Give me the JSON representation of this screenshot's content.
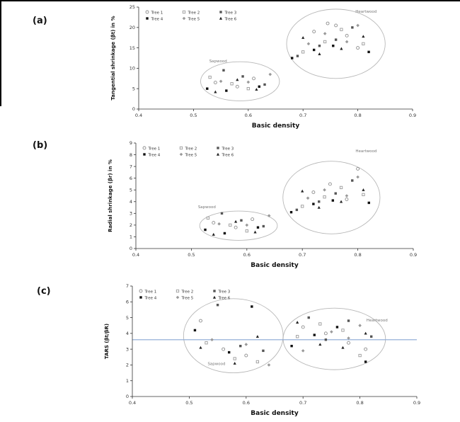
{
  "page": {
    "panels": [
      {
        "label": "(a)"
      },
      {
        "label": "(b)"
      },
      {
        "label": "(c)"
      }
    ]
  },
  "chart_data": [
    {
      "panel": "a",
      "type": "scatter",
      "xlabel": "Basic density",
      "ylabel": "Tangential shrinkage (βt) in %",
      "xlim": [
        0.4,
        0.9
      ],
      "ylim": [
        0,
        25
      ],
      "xticks": [
        0.4,
        0.5,
        0.6,
        0.7,
        0.8,
        0.9
      ],
      "xtick_labels": [
        "0.4",
        "0.5",
        "0.6",
        "0.7",
        "0.8",
        "0.9"
      ],
      "yticks": [
        0,
        5,
        10,
        15,
        20,
        25
      ],
      "legend_position": "top-left",
      "series": [
        {
          "name": "Tree 1",
          "marker": "circle-open",
          "color": "#8c8c8c",
          "points": [
            [
              0.54,
              6.5
            ],
            [
              0.58,
              5.5
            ],
            [
              0.61,
              7.5
            ],
            [
              0.72,
              19
            ],
            [
              0.745,
              21
            ],
            [
              0.78,
              18
            ],
            [
              0.8,
              15
            ],
            [
              0.76,
              20.5
            ]
          ]
        },
        {
          "name": "Tree 2",
          "marker": "square-open",
          "color": "#9a9a9a",
          "points": [
            [
              0.53,
              7.8
            ],
            [
              0.57,
              6.2
            ],
            [
              0.6,
              5.0
            ],
            [
              0.7,
              14
            ],
            [
              0.74,
              16.5
            ],
            [
              0.77,
              19.5
            ],
            [
              0.81,
              16
            ]
          ]
        },
        {
          "name": "Tree 3",
          "marker": "square-dark",
          "color": "#555555",
          "points": [
            [
              0.555,
              9.5
            ],
            [
              0.59,
              8.0
            ],
            [
              0.63,
              6.0
            ],
            [
              0.69,
              13
            ],
            [
              0.73,
              15.5
            ],
            [
              0.76,
              17
            ],
            [
              0.79,
              20
            ]
          ]
        },
        {
          "name": "Tree 4",
          "marker": "square-black",
          "color": "#111111",
          "points": [
            [
              0.525,
              5.0
            ],
            [
              0.56,
              4.5
            ],
            [
              0.62,
              5.5
            ],
            [
              0.68,
              12.5
            ],
            [
              0.72,
              14.5
            ],
            [
              0.755,
              15.5
            ],
            [
              0.82,
              14
            ]
          ]
        },
        {
          "name": "Tree 5",
          "marker": "diamond-gray",
          "color": "#999999",
          "points": [
            [
              0.55,
              6.8
            ],
            [
              0.6,
              6.6
            ],
            [
              0.64,
              8.5
            ],
            [
              0.71,
              16
            ],
            [
              0.74,
              18.5
            ],
            [
              0.78,
              16.5
            ],
            [
              0.8,
              20.5
            ]
          ]
        },
        {
          "name": "Tree 6",
          "marker": "triangle-black",
          "color": "#222222",
          "points": [
            [
              0.54,
              4.2
            ],
            [
              0.58,
              7.2
            ],
            [
              0.615,
              4.8
            ],
            [
              0.7,
              17.5
            ],
            [
              0.73,
              13.5
            ],
            [
              0.77,
              14.8
            ],
            [
              0.81,
              17.8
            ]
          ]
        }
      ],
      "ellipses": [
        {
          "label": "Sapwood",
          "cx": 0.585,
          "cy": 6.8,
          "rx": 0.072,
          "ry": 4.8,
          "label_x": 0.545,
          "label_y": 11.5
        },
        {
          "label": "Heartwood",
          "cx": 0.76,
          "cy": 16.0,
          "rx": 0.09,
          "ry": 8.5,
          "label_x": 0.815,
          "label_y": 23.6
        }
      ],
      "hline": null
    },
    {
      "panel": "b",
      "type": "scatter",
      "xlabel": "Basic density",
      "ylabel": "Radial shrinkage (βr) in %",
      "xlim": [
        0.4,
        0.9
      ],
      "ylim": [
        0,
        9
      ],
      "xticks": [
        0.4,
        0.5,
        0.6,
        0.7,
        0.8,
        0.9
      ],
      "xtick_labels": [
        "0.4",
        "0.5",
        "0.6",
        "0.7",
        "0.8",
        "0.9"
      ],
      "yticks": [
        0,
        1,
        2,
        3,
        4,
        5,
        6,
        7,
        8,
        9
      ],
      "legend_position": "top-left",
      "series": [
        {
          "name": "Tree 1",
          "marker": "circle-open",
          "color": "#8c8c8c",
          "points": [
            [
              0.54,
              2.2
            ],
            [
              0.58,
              1.8
            ],
            [
              0.61,
              2.5
            ],
            [
              0.72,
              4.8
            ],
            [
              0.75,
              5.5
            ],
            [
              0.78,
              4.2
            ],
            [
              0.8,
              6.8
            ]
          ]
        },
        {
          "name": "Tree 2",
          "marker": "square-open",
          "color": "#9a9a9a",
          "points": [
            [
              0.53,
              2.6
            ],
            [
              0.57,
              2.0
            ],
            [
              0.6,
              1.5
            ],
            [
              0.7,
              3.6
            ],
            [
              0.74,
              4.4
            ],
            [
              0.77,
              5.2
            ],
            [
              0.81,
              4.6
            ]
          ]
        },
        {
          "name": "Tree 3",
          "marker": "square-dark",
          "color": "#555555",
          "points": [
            [
              0.555,
              3.0
            ],
            [
              0.59,
              2.4
            ],
            [
              0.63,
              1.9
            ],
            [
              0.69,
              3.3
            ],
            [
              0.73,
              4.0
            ],
            [
              0.76,
              4.7
            ],
            [
              0.79,
              5.8
            ]
          ]
        },
        {
          "name": "Tree 4",
          "marker": "square-black",
          "color": "#111111",
          "points": [
            [
              0.525,
              1.6
            ],
            [
              0.56,
              1.3
            ],
            [
              0.62,
              1.8
            ],
            [
              0.68,
              3.1
            ],
            [
              0.72,
              3.8
            ],
            [
              0.755,
              4.1
            ],
            [
              0.82,
              3.9
            ]
          ]
        },
        {
          "name": "Tree 5",
          "marker": "diamond-gray",
          "color": "#999999",
          "points": [
            [
              0.55,
              2.1
            ],
            [
              0.6,
              2.0
            ],
            [
              0.64,
              2.8
            ],
            [
              0.71,
              4.3
            ],
            [
              0.74,
              5.0
            ],
            [
              0.78,
              4.5
            ],
            [
              0.8,
              6.1
            ]
          ]
        },
        {
          "name": "Tree 6",
          "marker": "triangle-black",
          "color": "#222222",
          "points": [
            [
              0.54,
              1.2
            ],
            [
              0.58,
              2.3
            ],
            [
              0.615,
              1.4
            ],
            [
              0.7,
              4.9
            ],
            [
              0.73,
              3.5
            ],
            [
              0.77,
              4.0
            ],
            [
              0.81,
              5.0
            ]
          ]
        }
      ],
      "ellipses": [
        {
          "label": "Sapwood",
          "cx": 0.585,
          "cy": 1.95,
          "rx": 0.07,
          "ry": 1.25,
          "label_x": 0.528,
          "label_y": 3.45
        },
        {
          "label": "Heartwood",
          "cx": 0.7525,
          "cy": 4.35,
          "rx": 0.0875,
          "ry": 3.1,
          "label_x": 0.815,
          "label_y": 8.2
        }
      ],
      "hline": null
    },
    {
      "panel": "c",
      "type": "scatter",
      "xlabel": "Basic density",
      "ylabel": "TARS (βt/βR)",
      "xlim": [
        0.4,
        0.9
      ],
      "ylim": [
        0,
        7
      ],
      "xticks": [
        0.4,
        0.5,
        0.6,
        0.7,
        0.8,
        0.9
      ],
      "xtick_labels": [
        "0.4",
        "0.5",
        "0.6",
        "0.7",
        "0.8",
        "0.9"
      ],
      "yticks": [
        0,
        1,
        2,
        3,
        4,
        5,
        6,
        7
      ],
      "legend_position": "top-left",
      "series": [
        {
          "name": "Tree 1",
          "marker": "circle-open",
          "color": "#8c8c8c",
          "points": [
            [
              0.52,
              4.8
            ],
            [
              0.56,
              3.0
            ],
            [
              0.6,
              2.6
            ],
            [
              0.7,
              4.4
            ],
            [
              0.74,
              4.0
            ],
            [
              0.78,
              3.4
            ],
            [
              0.81,
              3.0
            ]
          ]
        },
        {
          "name": "Tree 2",
          "marker": "square-open",
          "color": "#9a9a9a",
          "points": [
            [
              0.53,
              3.4
            ],
            [
              0.58,
              2.4
            ],
            [
              0.62,
              2.2
            ],
            [
              0.69,
              3.8
            ],
            [
              0.73,
              4.6
            ],
            [
              0.77,
              4.2
            ],
            [
              0.8,
              2.6
            ]
          ]
        },
        {
          "name": "Tree 3",
          "marker": "square-dark",
          "color": "#555555",
          "points": [
            [
              0.55,
              5.8
            ],
            [
              0.59,
              3.2
            ],
            [
              0.63,
              2.9
            ],
            [
              0.71,
              5.0
            ],
            [
              0.74,
              3.6
            ],
            [
              0.78,
              4.8
            ],
            [
              0.82,
              3.8
            ]
          ]
        },
        {
          "name": "Tree 4",
          "marker": "square-black",
          "color": "#111111",
          "points": [
            [
              0.51,
              4.2
            ],
            [
              0.57,
              2.8
            ],
            [
              0.61,
              5.7
            ],
            [
              0.68,
              3.2
            ],
            [
              0.72,
              3.9
            ],
            [
              0.76,
              4.4
            ],
            [
              0.81,
              2.2
            ]
          ]
        },
        {
          "name": "Tree 5",
          "marker": "diamond-gray",
          "color": "#999999",
          "points": [
            [
              0.54,
              3.6
            ],
            [
              0.6,
              3.3
            ],
            [
              0.64,
              2.0
            ],
            [
              0.7,
              2.9
            ],
            [
              0.75,
              4.1
            ],
            [
              0.78,
              3.7
            ],
            [
              0.8,
              4.5
            ]
          ]
        },
        {
          "name": "Tree 6",
          "marker": "triangle-black",
          "color": "#222222",
          "points": [
            [
              0.52,
              3.1
            ],
            [
              0.58,
              2.1
            ],
            [
              0.62,
              3.8
            ],
            [
              0.69,
              4.7
            ],
            [
              0.73,
              3.3
            ],
            [
              0.77,
              3.1
            ],
            [
              0.81,
              4.0
            ]
          ]
        }
      ],
      "ellipses": [
        {
          "label": "Sapwood",
          "cx": 0.5775,
          "cy": 3.85,
          "rx": 0.0875,
          "ry": 2.35,
          "label_x": 0.548,
          "label_y": 2.0
        },
        {
          "label": "Heartwood",
          "cx": 0.755,
          "cy": 3.65,
          "rx": 0.09,
          "ry": 1.95,
          "label_x": 0.83,
          "label_y": 4.75
        }
      ],
      "hline": {
        "y": 3.6,
        "color": "#88a6d4"
      }
    }
  ]
}
